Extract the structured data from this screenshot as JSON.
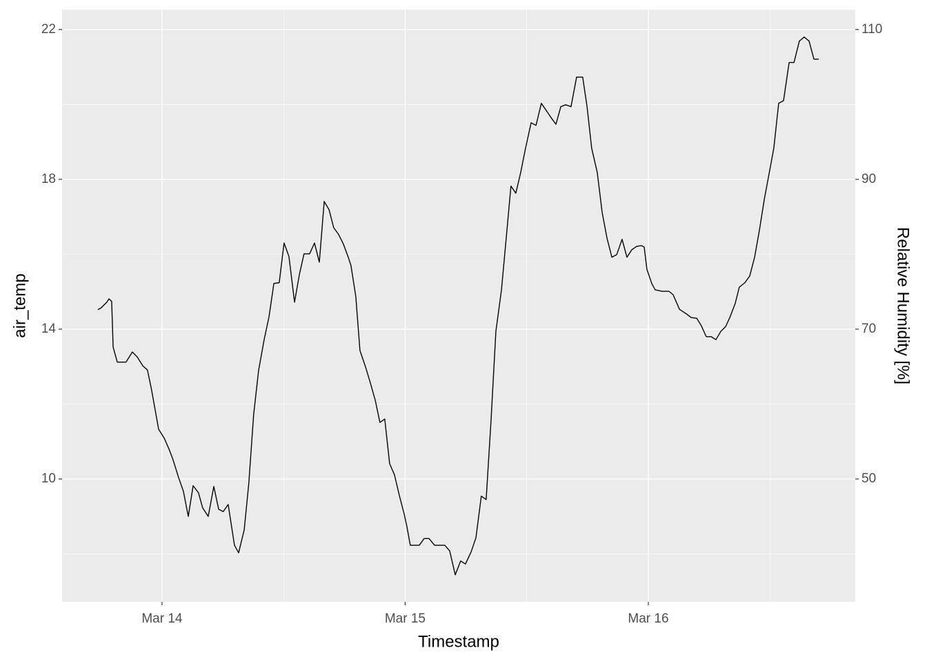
{
  "chart_data": {
    "type": "line",
    "xlabel": "Timestamp",
    "ylabel": "air_temp",
    "y2label": "Relative Humidity [%]",
    "x": [
      13.736,
      13.75,
      13.759,
      13.773,
      13.782,
      13.793,
      13.799,
      13.816,
      13.852,
      13.878,
      13.898,
      13.921,
      13.94,
      13.957,
      13.986,
      14.009,
      14.028,
      14.045,
      14.068,
      14.088,
      14.108,
      14.128,
      14.15,
      14.167,
      14.19,
      14.213,
      14.233,
      14.252,
      14.272,
      14.298,
      14.315,
      14.338,
      14.357,
      14.377,
      14.397,
      14.42,
      14.44,
      14.46,
      14.482,
      14.502,
      14.522,
      14.545,
      14.565,
      14.584,
      14.607,
      14.627,
      14.647,
      14.667,
      14.687,
      14.706,
      14.726,
      14.746,
      14.766,
      14.777,
      14.797,
      14.814,
      14.837,
      14.857,
      14.877,
      14.896,
      14.916,
      14.936,
      14.956,
      14.976,
      14.996,
      15.007,
      15.021,
      15.058,
      15.078,
      15.098,
      15.121,
      15.163,
      15.183,
      15.206,
      15.228,
      15.248,
      15.271,
      15.291,
      15.313,
      15.333,
      15.353,
      15.373,
      15.396,
      15.413,
      15.435,
      15.455,
      15.475,
      15.495,
      15.518,
      15.538,
      15.56,
      15.58,
      15.603,
      15.62,
      15.64,
      15.66,
      15.682,
      15.705,
      15.73,
      15.748,
      15.767,
      15.79,
      15.81,
      15.83,
      15.85,
      15.87,
      15.892,
      15.912,
      15.932,
      15.952,
      15.972,
      15.983,
      15.994,
      16.014,
      16.028,
      16.057,
      16.085,
      16.102,
      16.128,
      16.156,
      16.176,
      16.199,
      16.218,
      16.238,
      16.258,
      16.278,
      16.298,
      16.318,
      16.335,
      16.357,
      16.374,
      16.397,
      16.417,
      16.437,
      16.457,
      16.477,
      16.496,
      16.516,
      16.536,
      16.556,
      16.579,
      16.599,
      16.621,
      16.641,
      16.661,
      16.681,
      16.701
    ],
    "series": [
      {
        "name": "air_temp",
        "color": "#000000",
        "values": [
          14.52,
          14.57,
          14.63,
          14.72,
          14.81,
          14.74,
          13.52,
          13.12,
          13.12,
          13.39,
          13.26,
          13.02,
          12.91,
          12.38,
          11.33,
          11.09,
          10.81,
          10.52,
          10.04,
          9.67,
          9.0,
          9.82,
          9.63,
          9.23,
          9.0,
          9.8,
          9.19,
          9.13,
          9.32,
          8.23,
          8.03,
          8.64,
          9.89,
          11.73,
          12.89,
          13.72,
          14.33,
          15.22,
          15.24,
          16.3,
          15.94,
          14.72,
          15.46,
          16.01,
          16.01,
          16.3,
          15.79,
          17.41,
          17.19,
          16.71,
          16.53,
          16.27,
          15.92,
          15.7,
          14.87,
          13.43,
          12.99,
          12.56,
          12.1,
          11.51,
          11.6,
          10.41,
          10.11,
          9.56,
          9.06,
          8.73,
          8.23,
          8.23,
          8.41,
          8.41,
          8.23,
          8.23,
          8.08,
          7.44,
          7.81,
          7.73,
          8.05,
          8.43,
          9.54,
          9.45,
          11.55,
          13.94,
          15.05,
          16.25,
          17.82,
          17.63,
          18.18,
          18.83,
          19.51,
          19.44,
          20.03,
          19.84,
          19.62,
          19.47,
          19.94,
          19.99,
          19.94,
          20.73,
          20.73,
          19.94,
          18.83,
          18.18,
          17.12,
          16.43,
          15.92,
          15.99,
          16.4,
          15.92,
          16.12,
          16.21,
          16.23,
          16.19,
          15.6,
          15.22,
          15.05,
          15.01,
          15.01,
          14.92,
          14.53,
          14.41,
          14.31,
          14.29,
          14.09,
          13.8,
          13.8,
          13.72,
          13.94,
          14.07,
          14.31,
          14.68,
          15.12,
          15.24,
          15.42,
          15.92,
          16.65,
          17.47,
          18.13,
          18.83,
          20.03,
          20.1,
          21.12,
          21.12,
          21.69,
          21.8,
          21.69,
          21.21,
          21.21
        ]
      }
    ],
    "xlim": [
      13.589,
      16.851
    ],
    "xticks": [
      {
        "value": 14,
        "label": "Mar 14"
      },
      {
        "value": 15,
        "label": "Mar 15"
      },
      {
        "value": 16,
        "label": "Mar 16"
      }
    ],
    "ylim": [
      6.72,
      22.53
    ],
    "yticks": [
      10,
      14,
      18,
      22
    ],
    "y2lim": [
      33.6,
      112.65
    ],
    "y2ticks": [
      50,
      70,
      90,
      110
    ],
    "grid": true
  }
}
